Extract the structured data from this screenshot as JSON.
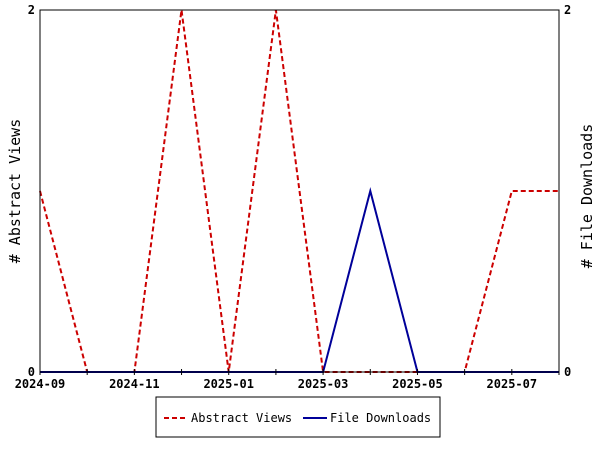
{
  "chart_data": {
    "type": "line",
    "x": [
      "2024-09",
      "2024-10",
      "2024-11",
      "2024-12",
      "2025-01",
      "2025-02",
      "2025-03",
      "2025-04",
      "2025-05",
      "2025-06",
      "2025-07",
      "2025-08"
    ],
    "x_tick_labels": [
      "2024-09",
      "2024-11",
      "2025-01",
      "2025-03",
      "2025-05",
      "2025-07"
    ],
    "ylabel_left": "# Abstract Views",
    "ylabel_right": "# File Downloads",
    "ylim_left": [
      0,
      2
    ],
    "ylim_right": [
      0,
      2
    ],
    "y_tick_labels_left": [
      "0",
      "2"
    ],
    "y_tick_labels_right": [
      "0",
      "2"
    ],
    "grid": false,
    "legend_position": "bottom-center",
    "series": [
      {
        "name": "Abstract Views",
        "axis": "left",
        "style": "dashed",
        "color": "#cc0000",
        "values": [
          1,
          0,
          0,
          2,
          0,
          2,
          0,
          0,
          0,
          0,
          1,
          1
        ]
      },
      {
        "name": "File Downloads",
        "axis": "right",
        "style": "solid",
        "color": "#000099",
        "values": [
          0,
          0,
          0,
          0,
          0,
          0,
          0,
          1,
          0,
          0,
          0,
          0
        ]
      }
    ]
  }
}
